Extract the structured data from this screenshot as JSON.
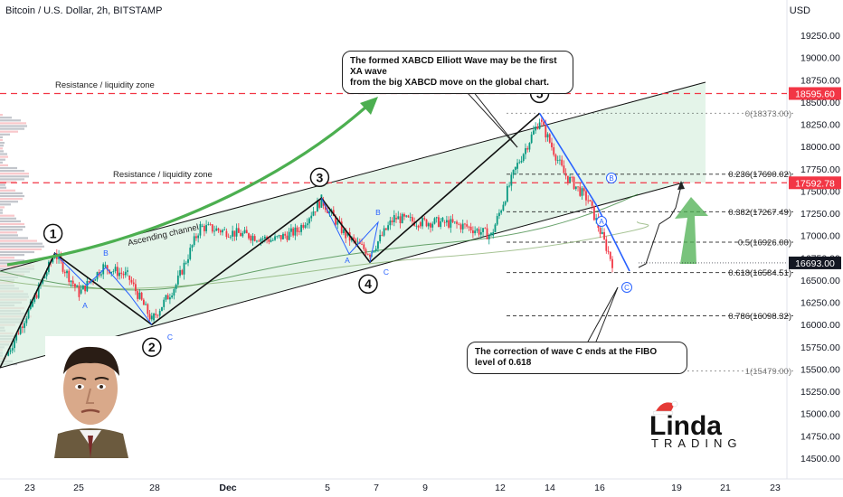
{
  "header": {
    "title": "Bitcoin / U.S. Dollar, 2h, BITSTAMP",
    "currency": "USD"
  },
  "annotations": {
    "callout_top": "The formed XABCD Elliott Wave may be the first XA wave from the big XABCD move on the global chart.",
    "callout_top_lines": [
      "The formed XABCD Elliott Wave may be the first XA wave",
      "from the big XABCD move on the global chart."
    ],
    "callout_bottom": "The correction of wave C ends at the FIBO level of 0.618",
    "resistance_upper": "Resistance / liquidity zone",
    "resistance_lower": "Resistance / liquidity zone",
    "channel_label": "Ascending channel",
    "wave_numbers": [
      "1",
      "2",
      "3",
      "4",
      "5"
    ],
    "abc_labels": [
      "A",
      "B",
      "C"
    ],
    "circled_labels": [
      "B",
      "A",
      "C"
    ]
  },
  "branding": {
    "logo_main": "Linda",
    "logo_sub": "TRADING"
  },
  "colors": {
    "up": "#089981",
    "down": "#f23645",
    "resistance": "#f23645",
    "channel_fill": "#d9efdf",
    "arrow_green": "#4caf50",
    "wave_blue": "#2962ff"
  },
  "chart_data": {
    "type": "candlestick",
    "symbol": "Bitcoin / U.S. Dollar, 2h, BITSTAMP",
    "x_tick_labels": [
      "23",
      "25",
      "28",
      "Dec",
      "5",
      "7",
      "9",
      "12",
      "14",
      "16",
      "19",
      "21",
      "23"
    ],
    "y_tick_labels": [
      "19250.00",
      "19000.00",
      "18750.00",
      "18500.00",
      "18250.00",
      "18000.00",
      "17750.00",
      "17500.00",
      "17250.00",
      "17000.00",
      "16750.00",
      "16500.00",
      "16250.00",
      "16000.00",
      "15750.00",
      "15500.00",
      "15250.00",
      "15000.00",
      "14750.00",
      "14500.00"
    ],
    "ylim": [
      14380,
      19520
    ],
    "price_labels": [
      {
        "value": 18595.6,
        "text": "18595.60",
        "color": "#f23645"
      },
      {
        "value": 17592.78,
        "text": "17592.78",
        "color": "#f23645"
      },
      {
        "value": 16693.0,
        "text": "16693.00",
        "color": "#131722"
      }
    ],
    "resistance_levels": [
      18595.6,
      17592.78
    ],
    "fib_levels": [
      {
        "ratio": "0",
        "price": 18373.0,
        "label": "0(18373.00)"
      },
      {
        "ratio": "0.236",
        "price": 17690.02,
        "label": "0.236(17690.02)"
      },
      {
        "ratio": "0.382",
        "price": 17267.49,
        "label": "0.382(17267.49)"
      },
      {
        "ratio": "0.5",
        "price": 16926.0,
        "label": "0.5(16926.00)"
      },
      {
        "ratio": "0.618",
        "price": 16584.51,
        "label": "0.618(16584.51)"
      },
      {
        "ratio": "0.786",
        "price": 16098.32,
        "label": "0.786(16098.32)"
      },
      {
        "ratio": "1",
        "price": 15479.0,
        "label": "1(15479.00)"
      }
    ],
    "close_path": [
      [
        "Nov 22",
        15650
      ],
      [
        "Nov 23",
        16200
      ],
      [
        "Nov 24",
        16800
      ],
      [
        "Nov 25",
        16350
      ],
      [
        "Nov 26",
        16650
      ],
      [
        "Nov 27",
        16550
      ],
      [
        "Nov 28",
        16050
      ],
      [
        "Nov 29",
        16450
      ],
      [
        "Nov 30",
        17100
      ],
      [
        "Dec 1",
        17050
      ],
      [
        "Dec 2",
        17000
      ],
      [
        "Dec 3",
        16950
      ],
      [
        "Dec 4",
        17050
      ],
      [
        "Dec 5",
        17400
      ],
      [
        "Dec 6",
        17000
      ],
      [
        "Dec 7",
        16800
      ],
      [
        "Dec 8",
        17200
      ],
      [
        "Dec 9",
        17150
      ],
      [
        "Dec 10",
        17150
      ],
      [
        "Dec 11",
        17100
      ],
      [
        "Dec 12",
        17000
      ],
      [
        "Dec 13",
        17750
      ],
      [
        "Dec 14",
        18300
      ],
      [
        "Dec 15",
        17700
      ],
      [
        "Dec 16",
        17400
      ],
      [
        "Dec 17",
        16693
      ]
    ],
    "wave_points": [
      {
        "label": "1",
        "date": "Nov 24",
        "price": 16800
      },
      {
        "label": "2",
        "date": "Nov 28",
        "price": 16000
      },
      {
        "label": "3",
        "date": "Dec 5",
        "price": 17420
      },
      {
        "label": "4",
        "date": "Dec 7",
        "price": 16700
      },
      {
        "label": "5",
        "date": "Dec 14",
        "price": 18373
      }
    ]
  }
}
